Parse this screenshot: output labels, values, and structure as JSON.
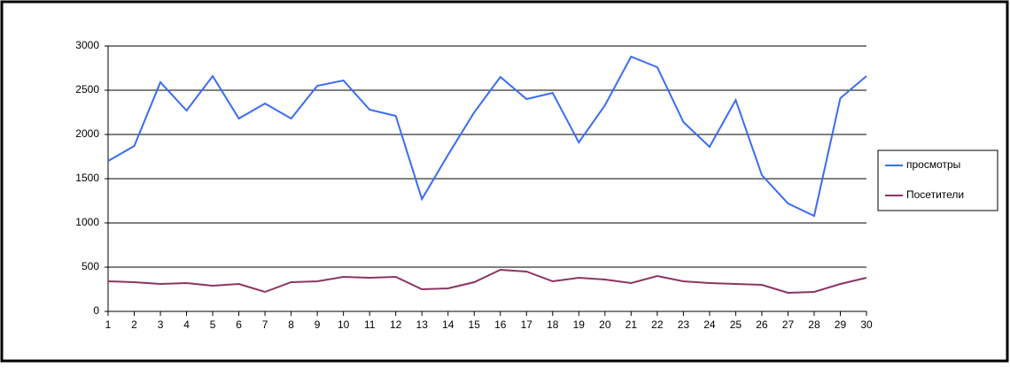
{
  "chart_data": {
    "type": "line",
    "x": [
      1,
      2,
      3,
      4,
      5,
      6,
      7,
      8,
      9,
      10,
      11,
      12,
      13,
      14,
      15,
      16,
      17,
      18,
      19,
      20,
      21,
      22,
      23,
      24,
      25,
      26,
      27,
      28,
      29,
      30
    ],
    "series": [
      {
        "name": "просмотры",
        "color": "#3a6cf4",
        "values": [
          1700,
          1870,
          2590,
          2270,
          2660,
          2180,
          2350,
          2180,
          2550,
          2610,
          2280,
          2210,
          1270,
          1770,
          2250,
          2650,
          2400,
          2470,
          1910,
          2330,
          2880,
          2760,
          2140,
          1860,
          2390,
          1540,
          1220,
          1080,
          2410,
          2660
        ]
      },
      {
        "name": "Посетители",
        "color": "#8b3465",
        "values": [
          340,
          330,
          310,
          320,
          290,
          310,
          220,
          330,
          340,
          390,
          380,
          390,
          250,
          260,
          330,
          470,
          450,
          340,
          380,
          360,
          320,
          400,
          340,
          320,
          310,
          300,
          210,
          220,
          310,
          380
        ]
      }
    ],
    "xlim": [
      1,
      30
    ],
    "xticks": [
      1,
      2,
      3,
      4,
      5,
      6,
      7,
      8,
      9,
      10,
      11,
      12,
      13,
      14,
      15,
      16,
      17,
      18,
      19,
      20,
      21,
      22,
      23,
      24,
      25,
      26,
      27,
      28,
      29,
      30
    ],
    "ylim": [
      0,
      3000
    ],
    "yticks": [
      0,
      500,
      1000,
      1500,
      2000,
      2500,
      3000
    ],
    "grid": true,
    "legend": "right"
  }
}
